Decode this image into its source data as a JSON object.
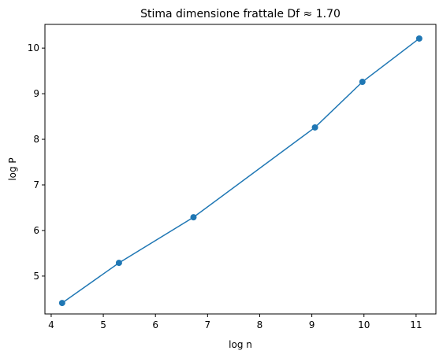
{
  "chart_data": {
    "type": "line",
    "title": "Stima dimensione frattale Df ≈ 1.70",
    "x_label": "log n",
    "y_label": "log P",
    "series": [
      {
        "name": "log P",
        "color": "#1f77b4",
        "x": [
          4.21,
          5.3,
          6.73,
          9.06,
          9.97,
          11.06
        ],
        "values": [
          4.41,
          5.29,
          6.29,
          8.26,
          9.26,
          10.21
        ]
      }
    ],
    "xlim": [
      3.88,
      11.38
    ],
    "xticks": [
      4,
      5,
      6,
      7,
      8,
      9,
      10,
      11
    ],
    "ylim": [
      4.17,
      10.52
    ],
    "yticks": [
      5,
      6,
      7,
      8,
      9,
      10
    ],
    "grid": false,
    "markers": true
  }
}
